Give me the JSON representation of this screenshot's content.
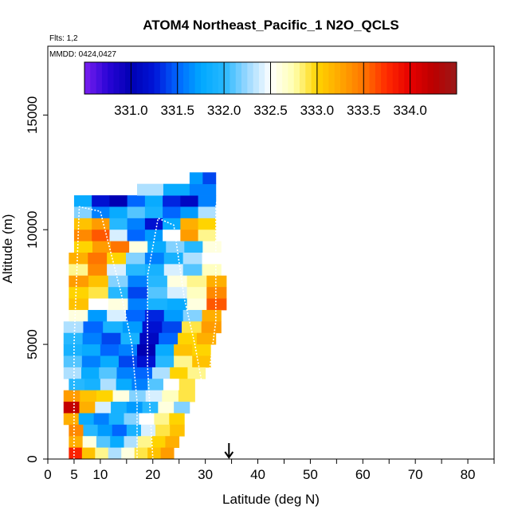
{
  "chart_data": {
    "type": "heatmap",
    "title": "ATOM4 Northeast_Pacific_1 N2O_QCLS",
    "subtitle_flights": "Flts: 1,2",
    "subtitle_dates": "MMDD: 0424,0427",
    "xlabel": "Latitude (deg N)",
    "ylabel": "Altitude (m)",
    "xlim": [
      0,
      85
    ],
    "ylim": [
      0,
      18000
    ],
    "x_ticks": [
      0,
      5,
      10,
      20,
      30,
      40,
      50,
      60,
      70,
      80
    ],
    "x_minor_ticks": [
      15,
      25,
      35,
      45,
      55,
      65,
      75,
      85
    ],
    "y_ticks": [
      0,
      5000,
      10000,
      15000
    ],
    "marker_arrow": {
      "latitude": 34.5
    },
    "colorbar": {
      "range": [
        330.5,
        334.5
      ],
      "tick_values": [
        331.0,
        331.5,
        332.0,
        332.5,
        333.0,
        333.5,
        334.0
      ],
      "tick_labels": [
        "331.0",
        "331.5",
        "332.0",
        "332.5",
        "333.0",
        "333.5",
        "334.0"
      ],
      "colors": [
        {
          "v": 330.5,
          "c": "#7a1ff0"
        },
        {
          "v": 330.75,
          "c": "#2a05d6"
        },
        {
          "v": 331.0,
          "c": "#0000b3"
        },
        {
          "v": 331.25,
          "c": "#0015d8"
        },
        {
          "v": 331.5,
          "c": "#0066ff"
        },
        {
          "v": 331.75,
          "c": "#00a8ff"
        },
        {
          "v": 332.0,
          "c": "#26b8ff"
        },
        {
          "v": 332.25,
          "c": "#9ad8ff"
        },
        {
          "v": 332.5,
          "c": "#ffffff"
        },
        {
          "v": 332.75,
          "c": "#ffffb0"
        },
        {
          "v": 333.0,
          "c": "#ffd400"
        },
        {
          "v": 333.25,
          "c": "#ffa600"
        },
        {
          "v": 333.5,
          "c": "#ff7500"
        },
        {
          "v": 333.75,
          "c": "#ff2a00"
        },
        {
          "v": 334.0,
          "c": "#e60000"
        },
        {
          "v": 334.25,
          "c": "#bb0000"
        },
        {
          "v": 334.5,
          "c": "#991a1a"
        }
      ]
    },
    "flight_track_1": [
      [
        5,
        0
      ],
      [
        5,
        5000
      ],
      [
        6,
        11000
      ],
      [
        10,
        10800
      ],
      [
        12,
        9000
      ],
      [
        14,
        7200
      ],
      [
        16,
        5000
      ],
      [
        17,
        2500
      ],
      [
        17,
        0
      ]
    ],
    "flight_track_2": [
      [
        20,
        0
      ],
      [
        19,
        4000
      ],
      [
        19,
        8000
      ],
      [
        21,
        10500
      ],
      [
        24,
        10200
      ],
      [
        26,
        7000
      ],
      [
        28,
        5000
      ],
      [
        30,
        2500
      ],
      [
        32,
        6000
      ],
      [
        32,
        11000
      ],
      [
        33,
        12300
      ]
    ],
    "rows": [
      {
        "y0": 11000,
        "y1": 11500,
        "x0": 5,
        "x1": 32,
        "v": [
          331.8,
          331.2,
          331.0,
          331.5,
          331.8,
          331.3,
          331.1,
          331.6
        ]
      },
      {
        "y0": 10500,
        "y1": 11000,
        "x0": 5,
        "x1": 32,
        "v": [
          332.2,
          331.6,
          331.8,
          332.1,
          331.9,
          331.5,
          331.7,
          332.3
        ]
      },
      {
        "y0": 10000,
        "y1": 10500,
        "x0": 5,
        "x1": 32,
        "v": [
          333.1,
          333.3,
          332.0,
          331.6,
          331.2,
          331.8,
          333.2,
          333.0
        ]
      },
      {
        "y0": 9500,
        "y1": 10000,
        "x0": 5,
        "x1": 32,
        "v": [
          333.4,
          333.6,
          332.4,
          331.5,
          331.7,
          332.5,
          333.3,
          332.8
        ]
      },
      {
        "y0": 9000,
        "y1": 9500,
        "x0": 5,
        "x1": 33,
        "v": [
          333.0,
          333.3,
          333.5,
          332.6,
          331.8,
          332.2,
          332.0,
          332.6
        ]
      },
      {
        "y0": 8500,
        "y1": 9000,
        "x0": 4,
        "x1": 33,
        "v": [
          333.2,
          333.5,
          333.0,
          332.2,
          331.6,
          331.9,
          332.3,
          332.5
        ]
      },
      {
        "y0": 8000,
        "y1": 8500,
        "x0": 4,
        "x1": 33,
        "v": [
          332.8,
          333.4,
          332.4,
          332.0,
          331.9,
          332.4,
          332.1,
          332.7
        ]
      },
      {
        "y0": 7500,
        "y1": 8000,
        "x0": 4,
        "x1": 34,
        "v": [
          333.3,
          333.1,
          332.2,
          331.6,
          332.0,
          332.6,
          332.8,
          333.2
        ]
      },
      {
        "y0": 7000,
        "y1": 7500,
        "x0": 4,
        "x1": 34,
        "v": [
          333.0,
          332.9,
          332.0,
          331.4,
          332.1,
          332.4,
          332.7,
          333.4
        ]
      },
      {
        "y0": 6500,
        "y1": 7000,
        "x0": 4,
        "x1": 34,
        "v": [
          333.1,
          332.5,
          332.6,
          331.6,
          331.9,
          331.8,
          332.6,
          333.6
        ]
      },
      {
        "y0": 6000,
        "y1": 6500,
        "x0": 4,
        "x1": 33,
        "v": [
          332.6,
          331.7,
          332.4,
          331.5,
          331.3,
          331.7,
          332.2,
          333.2
        ]
      },
      {
        "y0": 5500,
        "y1": 6000,
        "x0": 3,
        "x1": 33,
        "v": [
          332.3,
          331.5,
          331.9,
          331.7,
          331.2,
          331.4,
          332.9,
          333.3
        ]
      },
      {
        "y0": 5000,
        "y1": 5500,
        "x0": 3,
        "x1": 32,
        "v": [
          332.0,
          331.6,
          331.4,
          331.9,
          331.1,
          331.5,
          333.0,
          333.2
        ]
      },
      {
        "y0": 4500,
        "y1": 5000,
        "x0": 3,
        "x1": 31,
        "v": [
          331.9,
          331.8,
          331.5,
          331.6,
          331.0,
          331.8,
          333.1,
          333.0
        ]
      },
      {
        "y0": 4000,
        "y1": 4500,
        "x0": 3,
        "x1": 31,
        "v": [
          332.1,
          331.6,
          331.8,
          331.4,
          331.2,
          332.0,
          332.8,
          333.1
        ]
      },
      {
        "y0": 3500,
        "y1": 4000,
        "x0": 3,
        "x1": 30,
        "v": [
          332.3,
          331.8,
          332.1,
          331.6,
          331.5,
          332.3,
          333.0,
          332.8
        ]
      },
      {
        "y0": 3000,
        "y1": 3500,
        "x0": 4,
        "x1": 28,
        "v": [
          332.0,
          331.9,
          332.3,
          331.8,
          331.6,
          332.1,
          332.5,
          332.9
        ]
      },
      {
        "y0": 2500,
        "y1": 3000,
        "x0": 3,
        "x1": 28,
        "v": [
          333.3,
          333.1,
          333.0,
          332.6,
          332.2,
          332.4,
          332.7,
          332.9
        ]
      },
      {
        "y0": 2000,
        "y1": 2500,
        "x0": 3,
        "x1": 27,
        "v": [
          334.2,
          333.2,
          332.4,
          331.9,
          331.7,
          332.0,
          332.6,
          332.2
        ]
      },
      {
        "y0": 1500,
        "y1": 2000,
        "x0": 3,
        "x1": 26,
        "v": [
          333.2,
          331.8,
          331.6,
          331.9,
          332.2,
          332.5,
          332.8,
          333.0
        ]
      },
      {
        "y0": 1000,
        "y1": 1500,
        "x0": 4,
        "x1": 26,
        "v": [
          333.4,
          332.0,
          331.7,
          331.5,
          331.9,
          332.4,
          332.9,
          333.1
        ]
      },
      {
        "y0": 500,
        "y1": 1000,
        "x0": 4,
        "x1": 25,
        "v": [
          333.2,
          332.6,
          332.1,
          331.8,
          332.3,
          332.8,
          333.0,
          333.2
        ]
      },
      {
        "y0": 0,
        "y1": 500,
        "x0": 4,
        "x1": 24,
        "v": [
          333.8,
          333.1,
          332.8,
          332.3,
          332.6,
          332.9,
          333.1,
          333.3
        ]
      },
      {
        "y0": 11500,
        "y1": 12000,
        "x0": 17,
        "x1": 32,
        "v": [
          332.3,
          331.8,
          331.6
        ]
      },
      {
        "y0": 12000,
        "y1": 12500,
        "x0": 27,
        "x1": 32,
        "v": [
          331.7,
          331.4
        ]
      }
    ]
  }
}
